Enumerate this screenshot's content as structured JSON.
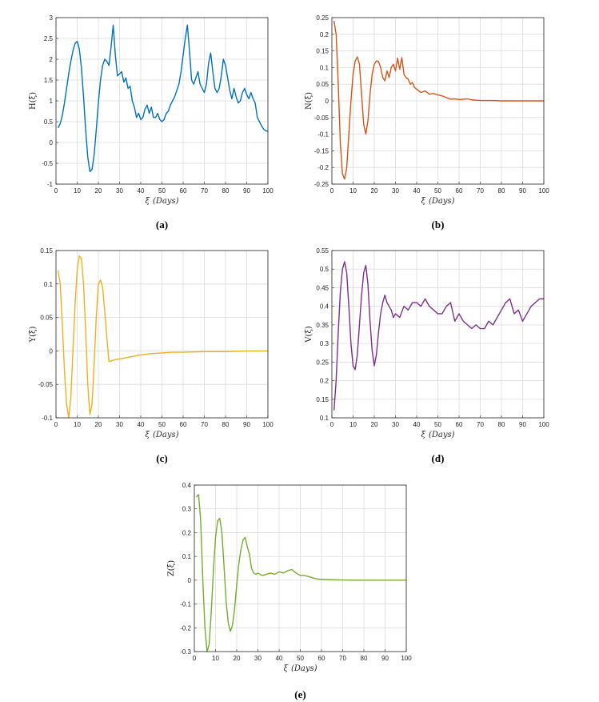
{
  "chart_data": [
    {
      "type": "line",
      "ylabel": "H(ξ)",
      "xlabel_symbol": "ξ",
      "xlabel_unit": "(Days)",
      "caption": "(a)",
      "color": "#0072BD",
      "xlim": [
        0,
        100
      ],
      "ylim": [
        -1,
        3
      ],
      "xticks": [
        "0",
        "10",
        "20",
        "30",
        "40",
        "50",
        "60",
        "70",
        "80",
        "90",
        "100"
      ],
      "yticks": [
        "-1",
        "-0.5",
        "0",
        "0.5",
        "1",
        "1.5",
        "2",
        "2.5",
        "3"
      ],
      "grid": true,
      "series": [
        {
          "x": [
            1,
            2,
            3,
            4,
            5,
            6,
            7,
            8,
            9,
            10,
            11,
            12,
            13,
            14,
            15,
            16,
            17,
            18,
            19,
            20,
            21,
            22,
            23,
            24,
            25,
            26,
            27,
            28,
            29,
            30,
            31,
            32,
            33,
            34,
            35,
            36,
            37,
            38,
            39,
            40,
            41,
            42,
            43,
            44,
            45,
            46,
            47,
            48,
            49,
            50,
            51,
            52,
            53,
            54,
            55,
            56,
            57,
            58,
            59,
            60,
            61,
            62,
            63,
            64,
            65,
            66,
            67,
            68,
            69,
            70,
            71,
            72,
            73,
            74,
            75,
            76,
            77,
            78,
            79,
            80,
            81,
            82,
            83,
            84,
            85,
            86,
            87,
            88,
            89,
            90,
            91,
            92,
            93,
            94,
            95,
            96,
            97,
            98,
            99,
            100
          ],
          "y": [
            0.35,
            0.45,
            0.65,
            0.95,
            1.3,
            1.65,
            1.95,
            2.2,
            2.38,
            2.43,
            2.25,
            1.8,
            1.1,
            0.3,
            -0.35,
            -0.7,
            -0.65,
            -0.3,
            0.3,
            0.95,
            1.5,
            1.85,
            2.0,
            1.95,
            1.85,
            2.3,
            2.82,
            2.1,
            1.6,
            1.65,
            1.7,
            1.45,
            1.55,
            1.3,
            1.35,
            1.0,
            0.85,
            0.6,
            0.7,
            0.55,
            0.6,
            0.8,
            0.9,
            0.7,
            0.85,
            0.6,
            0.6,
            0.7,
            0.55,
            0.5,
            0.55,
            0.7,
            0.75,
            0.9,
            1.0,
            1.1,
            1.25,
            1.4,
            1.7,
            2.1,
            2.5,
            2.82,
            2.2,
            1.5,
            1.4,
            1.55,
            1.7,
            1.4,
            1.3,
            1.2,
            1.4,
            1.9,
            2.15,
            1.7,
            1.3,
            1.2,
            1.3,
            1.6,
            2.0,
            1.85,
            1.55,
            1.25,
            1.05,
            1.3,
            1.1,
            0.95,
            1.0,
            1.2,
            1.3,
            1.15,
            1.05,
            1.2,
            1.05,
            0.95,
            0.6,
            0.5,
            0.4,
            0.32,
            0.28,
            0.27
          ]
        }
      ]
    },
    {
      "type": "line",
      "ylabel": "N(ξ)",
      "xlabel_symbol": "ξ",
      "xlabel_unit": "(Days)",
      "caption": "(b)",
      "color": "#D95319",
      "xlim": [
        0,
        100
      ],
      "ylim": [
        -0.25,
        0.25
      ],
      "xticks": [
        "0",
        "10",
        "20",
        "30",
        "40",
        "50",
        "60",
        "70",
        "80",
        "90",
        "100"
      ],
      "yticks": [
        "-0.25",
        "-0.2",
        "-0.15",
        "-0.1",
        "-0.05",
        "0",
        "0.05",
        "0.1",
        "0.15",
        "0.2",
        "0.25"
      ],
      "grid": true,
      "series": [
        {
          "x": [
            1,
            2,
            3,
            4,
            5,
            6,
            7,
            8,
            9,
            10,
            11,
            12,
            13,
            14,
            15,
            16,
            17,
            18,
            19,
            20,
            21,
            22,
            23,
            24,
            25,
            26,
            27,
            28,
            29,
            30,
            31,
            32,
            33,
            34,
            35,
            36,
            37,
            38,
            39,
            40,
            42,
            44,
            46,
            48,
            50,
            52,
            54,
            56,
            58,
            60,
            62,
            64,
            66,
            68,
            70,
            75,
            80,
            85,
            90,
            95,
            100
          ],
          "y": [
            0.24,
            0.2,
            0.05,
            -0.13,
            -0.22,
            -0.235,
            -0.2,
            -0.1,
            0.0,
            0.08,
            0.12,
            0.132,
            0.11,
            0.02,
            -0.07,
            -0.1,
            -0.06,
            0.02,
            0.08,
            0.11,
            0.12,
            0.118,
            0.1,
            0.07,
            0.06,
            0.09,
            0.07,
            0.1,
            0.11,
            0.09,
            0.128,
            0.095,
            0.13,
            0.08,
            0.07,
            0.065,
            0.05,
            0.055,
            0.04,
            0.035,
            0.025,
            0.03,
            0.02,
            0.022,
            0.018,
            0.015,
            0.01,
            0.005,
            0.006,
            0.004,
            0.005,
            0.006,
            0.003,
            0.002,
            0.001,
            0.001,
            0.0,
            0.0,
            0.0,
            0.0,
            0.0
          ]
        }
      ]
    },
    {
      "type": "line",
      "ylabel": "Y(ξ)",
      "xlabel_symbol": "ξ",
      "xlabel_unit": "(Days)",
      "caption": "(c)",
      "color": "#EDB120",
      "xlim": [
        0,
        100
      ],
      "ylim": [
        -0.1,
        0.15
      ],
      "xticks": [
        "0",
        "10",
        "20",
        "30",
        "40",
        "50",
        "60",
        "70",
        "80",
        "90",
        "100"
      ],
      "yticks": [
        "-0.1",
        "-0.05",
        "0",
        "0.05",
        "0.1",
        "0.15"
      ],
      "grid": true,
      "series": [
        {
          "x": [
            1,
            2,
            3,
            4,
            5,
            6,
            7,
            8,
            9,
            10,
            11,
            12,
            13,
            14,
            15,
            16,
            17,
            18,
            19,
            20,
            21,
            22,
            23,
            24,
            25,
            26,
            28,
            30,
            35,
            40,
            45,
            50,
            55,
            60,
            70,
            80,
            90,
            100
          ],
          "y": [
            0.12,
            0.1,
            0.04,
            -0.03,
            -0.08,
            -0.1,
            -0.07,
            0.0,
            0.07,
            0.12,
            0.142,
            0.138,
            0.1,
            0.03,
            -0.05,
            -0.095,
            -0.08,
            -0.02,
            0.05,
            0.1,
            0.106,
            0.095,
            0.06,
            0.02,
            -0.016,
            -0.015,
            -0.013,
            -0.012,
            -0.009,
            -0.006,
            -0.004,
            -0.003,
            -0.002,
            -0.002,
            -0.001,
            -0.001,
            0.0,
            0.0
          ]
        }
      ]
    },
    {
      "type": "line",
      "ylabel": "V(ξ)",
      "xlabel_symbol": "ξ",
      "xlabel_unit": "(Days)",
      "caption": "(d)",
      "color": "#7E2F8E",
      "xlim": [
        0,
        100
      ],
      "ylim": [
        0.1,
        0.55
      ],
      "xticks": [
        "0",
        "10",
        "20",
        "30",
        "40",
        "50",
        "60",
        "70",
        "80",
        "90",
        "100"
      ],
      "yticks": [
        "0.1",
        "0.15",
        "0.2",
        "0.25",
        "0.3",
        "0.35",
        "0.4",
        "0.45",
        "0.5",
        "0.55"
      ],
      "grid": true,
      "series": [
        {
          "x": [
            1,
            2,
            3,
            4,
            5,
            6,
            7,
            8,
            9,
            10,
            11,
            12,
            13,
            14,
            15,
            16,
            17,
            18,
            19,
            20,
            21,
            22,
            23,
            24,
            25,
            26,
            27,
            28,
            29,
            30,
            32,
            34,
            36,
            38,
            40,
            42,
            44,
            46,
            48,
            50,
            52,
            54,
            56,
            58,
            60,
            62,
            64,
            66,
            68,
            70,
            72,
            74,
            76,
            78,
            80,
            82,
            84,
            86,
            88,
            90,
            92,
            94,
            96,
            98,
            100
          ],
          "y": [
            0.12,
            0.2,
            0.33,
            0.44,
            0.5,
            0.52,
            0.49,
            0.4,
            0.3,
            0.24,
            0.23,
            0.27,
            0.35,
            0.43,
            0.49,
            0.51,
            0.46,
            0.36,
            0.28,
            0.24,
            0.27,
            0.33,
            0.38,
            0.41,
            0.43,
            0.41,
            0.4,
            0.39,
            0.37,
            0.38,
            0.37,
            0.4,
            0.39,
            0.41,
            0.41,
            0.4,
            0.42,
            0.4,
            0.39,
            0.38,
            0.38,
            0.4,
            0.41,
            0.36,
            0.38,
            0.36,
            0.35,
            0.34,
            0.35,
            0.34,
            0.34,
            0.36,
            0.35,
            0.37,
            0.39,
            0.41,
            0.42,
            0.38,
            0.39,
            0.36,
            0.38,
            0.4,
            0.41,
            0.42,
            0.42
          ]
        }
      ]
    },
    {
      "type": "line",
      "ylabel": "Z(ξ)",
      "xlabel_symbol": "ξ",
      "xlabel_unit": "(Days)",
      "caption": "(e)",
      "color": "#77AC30",
      "xlim": [
        0,
        100
      ],
      "ylim": [
        -0.3,
        0.4
      ],
      "xticks": [
        "0",
        "10",
        "20",
        "30",
        "40",
        "50",
        "60",
        "70",
        "80",
        "90",
        "100"
      ],
      "yticks": [
        "-0.3",
        "-0.2",
        "-0.1",
        "0",
        "0.1",
        "0.2",
        "0.3",
        "0.4"
      ],
      "grid": true,
      "series": [
        {
          "x": [
            1,
            2,
            3,
            4,
            5,
            6,
            7,
            8,
            9,
            10,
            11,
            12,
            13,
            14,
            15,
            16,
            17,
            18,
            19,
            20,
            21,
            22,
            23,
            24,
            25,
            26,
            27,
            28,
            29,
            30,
            32,
            34,
            36,
            38,
            40,
            42,
            44,
            46,
            48,
            50,
            52,
            54,
            56,
            58,
            60,
            62,
            65,
            70,
            75,
            80,
            85,
            90,
            95,
            100
          ],
          "y": [
            0.35,
            0.36,
            0.25,
            0.0,
            -0.2,
            -0.3,
            -0.27,
            -0.13,
            0.04,
            0.18,
            0.25,
            0.26,
            0.2,
            0.06,
            -0.09,
            -0.18,
            -0.215,
            -0.19,
            -0.12,
            -0.02,
            0.07,
            0.13,
            0.17,
            0.18,
            0.14,
            0.11,
            0.05,
            0.03,
            0.025,
            0.03,
            0.02,
            0.025,
            0.03,
            0.025,
            0.035,
            0.03,
            0.04,
            0.045,
            0.03,
            0.02,
            0.02,
            0.015,
            0.01,
            0.005,
            0.004,
            0.003,
            0.002,
            0.001,
            0.0,
            0.0,
            0.0,
            0.0,
            0.0,
            0.0
          ]
        }
      ]
    }
  ]
}
